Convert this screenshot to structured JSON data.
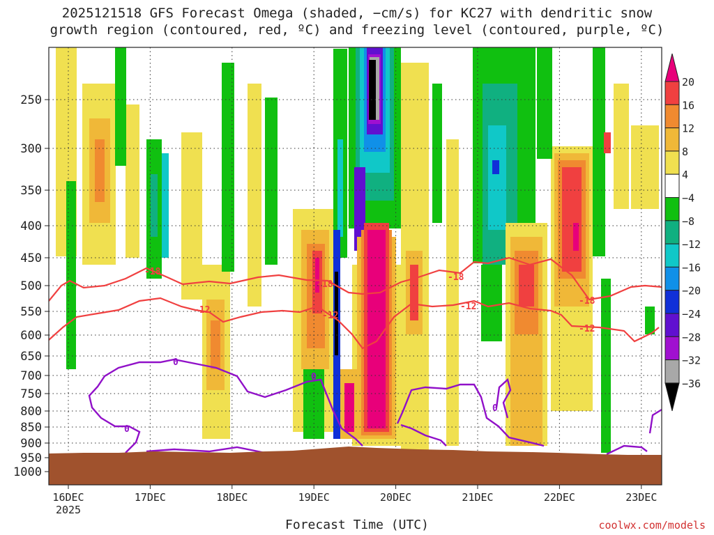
{
  "chart_data": {
    "type": "heatmap",
    "title_line1": "2025121518 GFS Forecast Omega (shaded, −cm/s) for KC27 with dendritic snow",
    "title_line2": "growth region (contoured, red, ºC) and freezing level (contoured, purple, ºC)",
    "xlabel": "Forecast Time (UTC)",
    "credit": "coolwx.com/models",
    "x_year_label": "2025",
    "x_ticks": [
      "16DEC",
      "17DEC",
      "18DEC",
      "19DEC",
      "20DEC",
      "21DEC",
      "22DEC",
      "23DEC"
    ],
    "y_ticks": [
      250,
      300,
      350,
      400,
      450,
      500,
      550,
      600,
      650,
      700,
      750,
      800,
      850,
      900,
      950,
      1000
    ],
    "colorbar": {
      "labels": [
        "20",
        "16",
        "12",
        "8",
        "4",
        "−4",
        "−8",
        "−12",
        "−16",
        "−20",
        "−24",
        "−28",
        "−32",
        "−36"
      ],
      "colors": [
        "#e8007a",
        "#f04040",
        "#f08a30",
        "#f0b838",
        "#f0e050",
        "#ffffff",
        "#10c010",
        "#10b080",
        "#10c8c8",
        "#1090e8",
        "#1030d8",
        "#6010d0",
        "#a010d0",
        "#a8a8a8",
        "#000000"
      ]
    },
    "contour_labels": {
      "dgz": [
        "-18",
        "-12"
      ],
      "freezing": [
        "0"
      ]
    },
    "colors": {
      "dgz_contour": "#f04040",
      "freezing_contour": "#9010c8",
      "ground": "#a0522d"
    }
  }
}
